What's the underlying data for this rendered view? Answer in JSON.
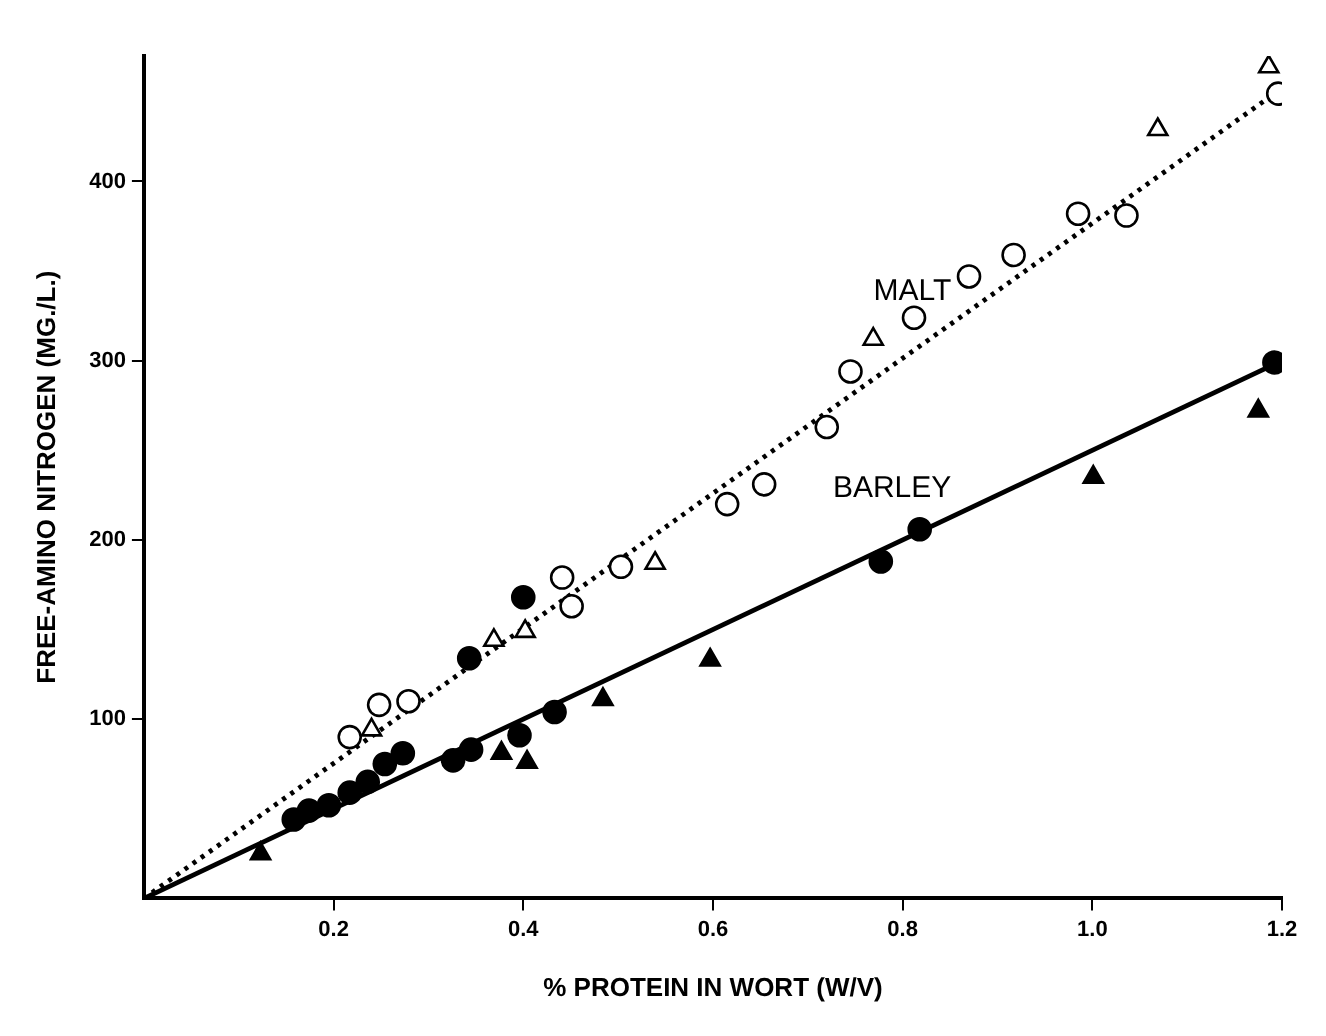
{
  "chart_data": {
    "type": "scatter",
    "xlabel": "% PROTEIN IN WORT (W/V)",
    "ylabel": "FREE-AMINO NITROGEN (MG./L.)",
    "xlim": [
      0,
      1.2
    ],
    "ylim": [
      0,
      470
    ],
    "xticks": [
      0.2,
      0.4,
      0.6,
      0.8,
      {
        "value": 1,
        "label": "1.0"
      },
      1.2
    ],
    "yticks": [
      100,
      200,
      300,
      400
    ],
    "grid": false,
    "legend": false,
    "series": [
      {
        "type": "scatter",
        "marker": "circle",
        "color": "#ffffff",
        "x": [
          0.217,
          0.248,
          0.279,
          0.441,
          0.451,
          0.503,
          0.615,
          0.654,
          0.72,
          0.745,
          0.812,
          0.87,
          0.917,
          0.985,
          1.036,
          1.196
        ],
        "values": [
          90,
          108,
          110,
          179,
          163,
          185,
          220,
          231,
          263,
          294,
          324,
          347,
          359,
          382,
          381,
          449
        ]
      },
      {
        "type": "scatter",
        "marker": "triangle",
        "color": "#ffffff",
        "x": [
          0.24,
          0.369,
          0.402,
          0.539,
          0.769,
          1.069,
          1.186
        ],
        "values": [
          94,
          144,
          149,
          187,
          312,
          429,
          464
        ]
      },
      {
        "type": "scatter",
        "marker": "circle",
        "color": "#000000",
        "x": [
          0.158,
          0.174,
          0.195,
          0.217,
          0.236,
          0.254,
          0.273,
          0.326,
          0.345,
          0.396,
          0.433,
          0.343,
          0.4,
          0.777,
          0.818,
          1.192
        ],
        "values": [
          44,
          49,
          52,
          59,
          65,
          75,
          81,
          77,
          83,
          91,
          104,
          134,
          168,
          188,
          206,
          299
        ]
      },
      {
        "type": "scatter",
        "marker": "triangle",
        "color": "#000000",
        "x": [
          0.123,
          0.377,
          0.404,
          0.484,
          0.597,
          1.001,
          1.175
        ],
        "values": [
          25,
          81,
          76,
          111,
          133,
          235,
          272
        ]
      },
      {
        "type": "line",
        "name": "MALT",
        "line_style": "dotted",
        "marker": "none",
        "color": "#000000",
        "x": [
          0,
          1.2
        ],
        "values": [
          0,
          452
        ]
      },
      {
        "type": "line",
        "name": "BARLEY",
        "line_style": "solid",
        "marker": "none",
        "color": "#000000",
        "x": [
          0,
          1.2
        ],
        "values": [
          0,
          300
        ]
      }
    ]
  }
}
